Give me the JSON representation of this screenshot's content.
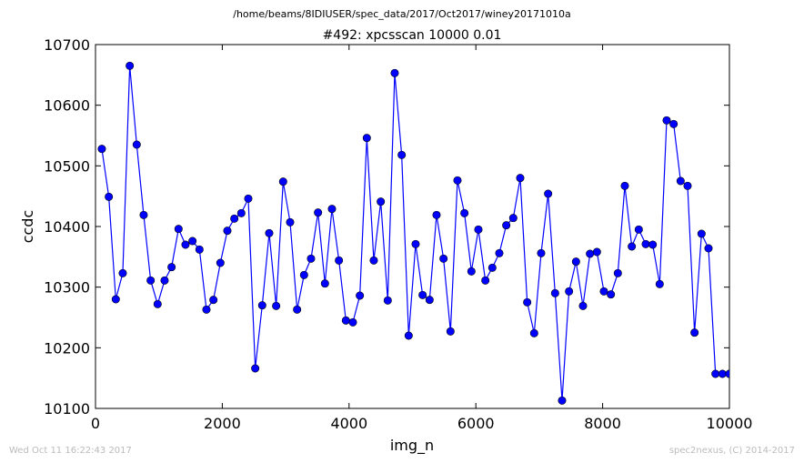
{
  "suptitle": "/home/beams/8IDIUSER/spec_data/2017/Oct2017/winey20171010a",
  "footer_left": "Wed Oct 11 16:22:43 2017",
  "footer_right": "spec2nexus, (C) 2014-2017",
  "chart_data": {
    "type": "line",
    "title": "#492: xpcsscan 10000 0.01",
    "xlabel": "img_n",
    "ylabel": "ccdc",
    "xlim": [
      0,
      10000
    ],
    "ylim": [
      10100,
      10700
    ],
    "xticks": [
      0,
      2000,
      4000,
      6000,
      8000,
      10000
    ],
    "yticks": [
      10100,
      10200,
      10300,
      10400,
      10500,
      10600,
      10700
    ],
    "grid": false,
    "line_color": "#0000ff",
    "marker": "circle",
    "series": [
      {
        "x": [
          100,
          210,
          320,
          430,
          540,
          650,
          760,
          870,
          980,
          1090,
          1200,
          1310,
          1420,
          1530,
          1640,
          1750,
          1860,
          1970,
          2080,
          2190,
          2300,
          2410,
          2520,
          2630,
          2740,
          2850,
          2960,
          3070,
          3180,
          3290,
          3400,
          3510,
          3620,
          3730,
          3840,
          3950,
          4060,
          4170,
          4280,
          4390,
          4500,
          4610,
          4720,
          4830,
          4940,
          5050,
          5160,
          5270,
          5380,
          5490,
          5600,
          5710,
          5820,
          5930,
          6040,
          6150,
          6260,
          6370,
          6480,
          6590,
          6700,
          6810,
          6920,
          7030,
          7140,
          7250,
          7360,
          7470,
          7580,
          7690,
          7800,
          7910,
          8020,
          8130,
          8240,
          8350,
          8460,
          8570,
          8680,
          8790,
          8900,
          9010,
          9120,
          9230,
          9340,
          9450,
          9560,
          9670,
          9780,
          9890,
          10000,
          10000
        ],
        "y": [
          10528,
          10449,
          10280,
          10323,
          10665,
          10535,
          10419,
          10311,
          10272,
          10311,
          10333,
          10396,
          10370,
          10376,
          10362,
          10263,
          10279,
          10340,
          10393,
          10413,
          10422,
          10446,
          10166,
          10270,
          10389,
          10269,
          10474,
          10407,
          10263,
          10320,
          10347,
          10423,
          10306,
          10429,
          10344,
          10245,
          10242,
          10286,
          10546,
          10344,
          10441,
          10278,
          10653,
          10518,
          10220,
          10371,
          10287,
          10279,
          10419,
          10347,
          10227,
          10476,
          10422,
          10326,
          10395,
          10311,
          10332,
          10356,
          10402,
          10414,
          10480,
          10275,
          10224,
          10356,
          10454,
          10290,
          10113,
          10293,
          10342,
          10269,
          10355,
          10358,
          10293,
          10288,
          10323,
          10467,
          10367,
          10395,
          10371,
          10370,
          10305,
          10575,
          10569,
          10475,
          10467,
          10225,
          10388,
          10364,
          10157,
          10157,
          10157,
          10157
        ]
      }
    ]
  }
}
